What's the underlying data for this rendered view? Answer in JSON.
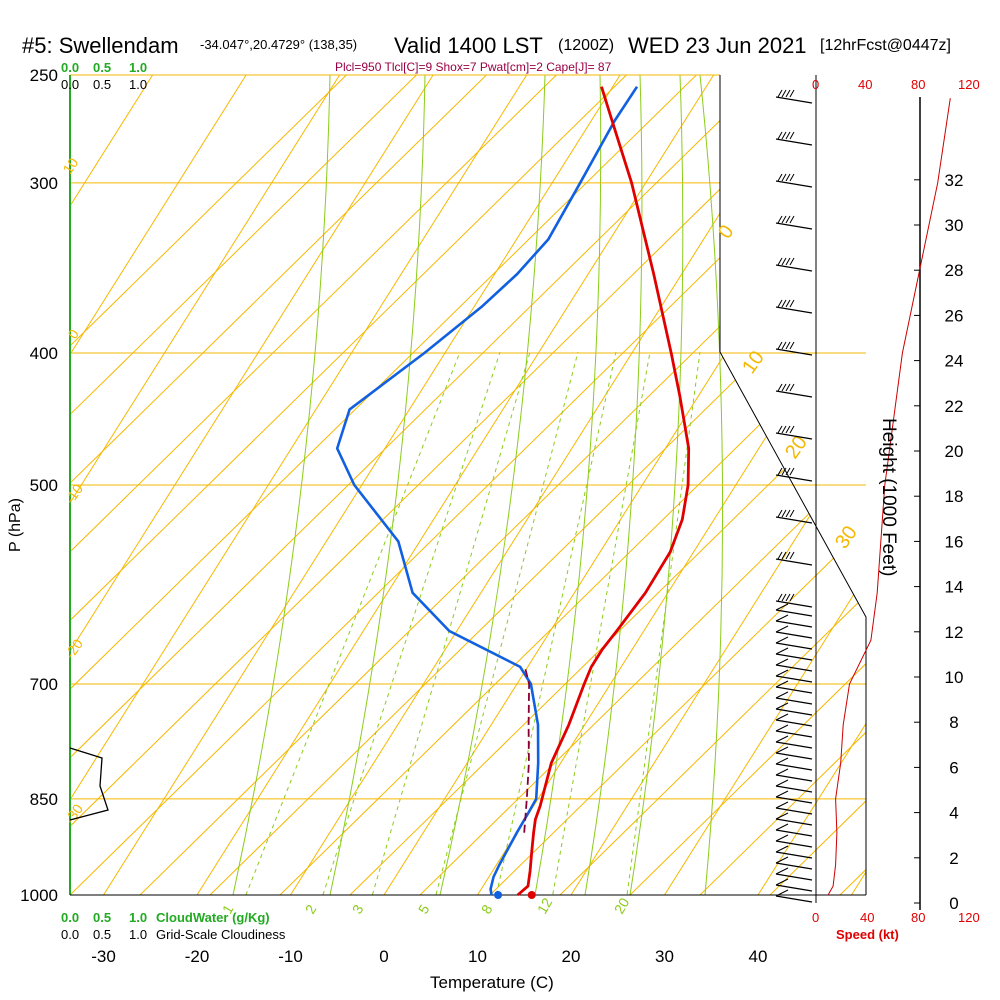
{
  "header": {
    "station": "#5: Swellendam",
    "coords": "-34.047°,20.4729° (138,35)",
    "valid": "Valid 1400 LST",
    "utc": "(1200Z)",
    "date": "WED 23 Jun 2021",
    "forecast": "[12hrFcst@0447z]"
  },
  "indices": "Plcl=950 Tlcl[C]=9 Shox=7 Pwat[cm]=2 Cape[J]= 87",
  "cloud_scale_top": [
    "0.0",
    "0.5",
    "1.0"
  ],
  "cloud_scale_bottom": [
    "0.0",
    "0.5",
    "1.0"
  ],
  "cloudwater_label": "CloudWater (g/Kg)",
  "gridscale_label": "Grid-Scale Cloudiness",
  "speed_ticks": [
    "0",
    "40",
    "80",
    "120"
  ],
  "speed_label": "Speed (kt)",
  "colors": {
    "temperature": "#e00000",
    "dewpoint": "#1060e0",
    "parcel": "#880033",
    "isotherm": "#f5b800",
    "dry_adiabat": "#f5b800",
    "moist_adiabat": "#8ccc1a",
    "mixing_ratio": "#8ccc1a",
    "cloud": "#22aa22",
    "wind_speed": "#cc0000"
  },
  "chart_data": {
    "type": "skew-t",
    "xlabel": "Temperature (C)",
    "ylabel": "P (hPa)",
    "y2label": "Height (1000 Feet)",
    "x_ticks": [
      -30,
      -20,
      -10,
      0,
      10,
      20,
      30,
      40
    ],
    "p_ticks": [
      250,
      300,
      400,
      500,
      700,
      850,
      1000
    ],
    "height_ticks": [
      0,
      2,
      4,
      6,
      8,
      10,
      12,
      14,
      16,
      18,
      20,
      22,
      24,
      26,
      28,
      30,
      32
    ],
    "dry_adiabat_labels": [
      "10",
      "0",
      "-10",
      "-20",
      "-30",
      "0",
      "10",
      "20",
      "30"
    ],
    "mixing_ratio_labels": [
      "1",
      "2",
      "3",
      "5",
      "8",
      "12",
      "20"
    ],
    "temperature": [
      [
        1000,
        14.3
      ],
      [
        985,
        14.8
      ],
      [
        960,
        14.0
      ],
      [
        930,
        12.9
      ],
      [
        900,
        11.8
      ],
      [
        880,
        11.1
      ],
      [
        860,
        10.7
      ],
      [
        800,
        9.0
      ],
      [
        750,
        8.3
      ],
      [
        700,
        7.2
      ],
      [
        680,
        6.8
      ],
      [
        660,
        6.8
      ],
      [
        640,
        7.1
      ],
      [
        600,
        7.6
      ],
      [
        560,
        7.5
      ],
      [
        530,
        6.6
      ],
      [
        500,
        4.9
      ],
      [
        470,
        2.5
      ],
      [
        430,
        -2.0
      ],
      [
        400,
        -5.8
      ],
      [
        350,
        -13.0
      ],
      [
        300,
        -21.5
      ],
      [
        270,
        -27.8
      ],
      [
        255,
        -31.2
      ]
    ],
    "dewpoint": [
      [
        1000,
        11.5
      ],
      [
        990,
        11.0
      ],
      [
        970,
        10.5
      ],
      [
        950,
        10.3
      ],
      [
        900,
        10.0
      ],
      [
        870,
        9.9
      ],
      [
        850,
        9.8
      ],
      [
        800,
        7.6
      ],
      [
        750,
        5.0
      ],
      [
        700,
        1.5
      ],
      [
        680,
        -0.8
      ],
      [
        640,
        -10.8
      ],
      [
        600,
        -17.3
      ],
      [
        550,
        -22.3
      ],
      [
        500,
        -30.8
      ],
      [
        470,
        -35.1
      ],
      [
        440,
        -36.4
      ],
      [
        400,
        -32.2
      ],
      [
        370,
        -29.2
      ],
      [
        350,
        -27.6
      ],
      [
        330,
        -26.6
      ],
      [
        300,
        -27.0
      ],
      [
        270,
        -27.5
      ],
      [
        255,
        -27.4
      ]
    ],
    "parcel": [
      [
        900,
        10.8
      ],
      [
        850,
        8.8
      ],
      [
        800,
        6.6
      ],
      [
        750,
        4.0
      ],
      [
        700,
        1.3
      ],
      [
        680,
        -0.3
      ]
    ],
    "surface_temp_dot": [
      1000,
      15.8
    ],
    "surface_dew_dot": [
      1000,
      12.2
    ],
    "wind_speed_profile_kt": [
      [
        1000,
        8
      ],
      [
        985,
        12
      ],
      [
        950,
        14
      ],
      [
        900,
        15
      ],
      [
        850,
        14
      ],
      [
        800,
        18
      ],
      [
        750,
        20
      ],
      [
        700,
        25
      ],
      [
        650,
        42
      ],
      [
        600,
        47
      ],
      [
        500,
        53
      ],
      [
        400,
        67
      ],
      [
        350,
        80
      ],
      [
        300,
        95
      ],
      [
        260,
        105
      ]
    ]
  }
}
